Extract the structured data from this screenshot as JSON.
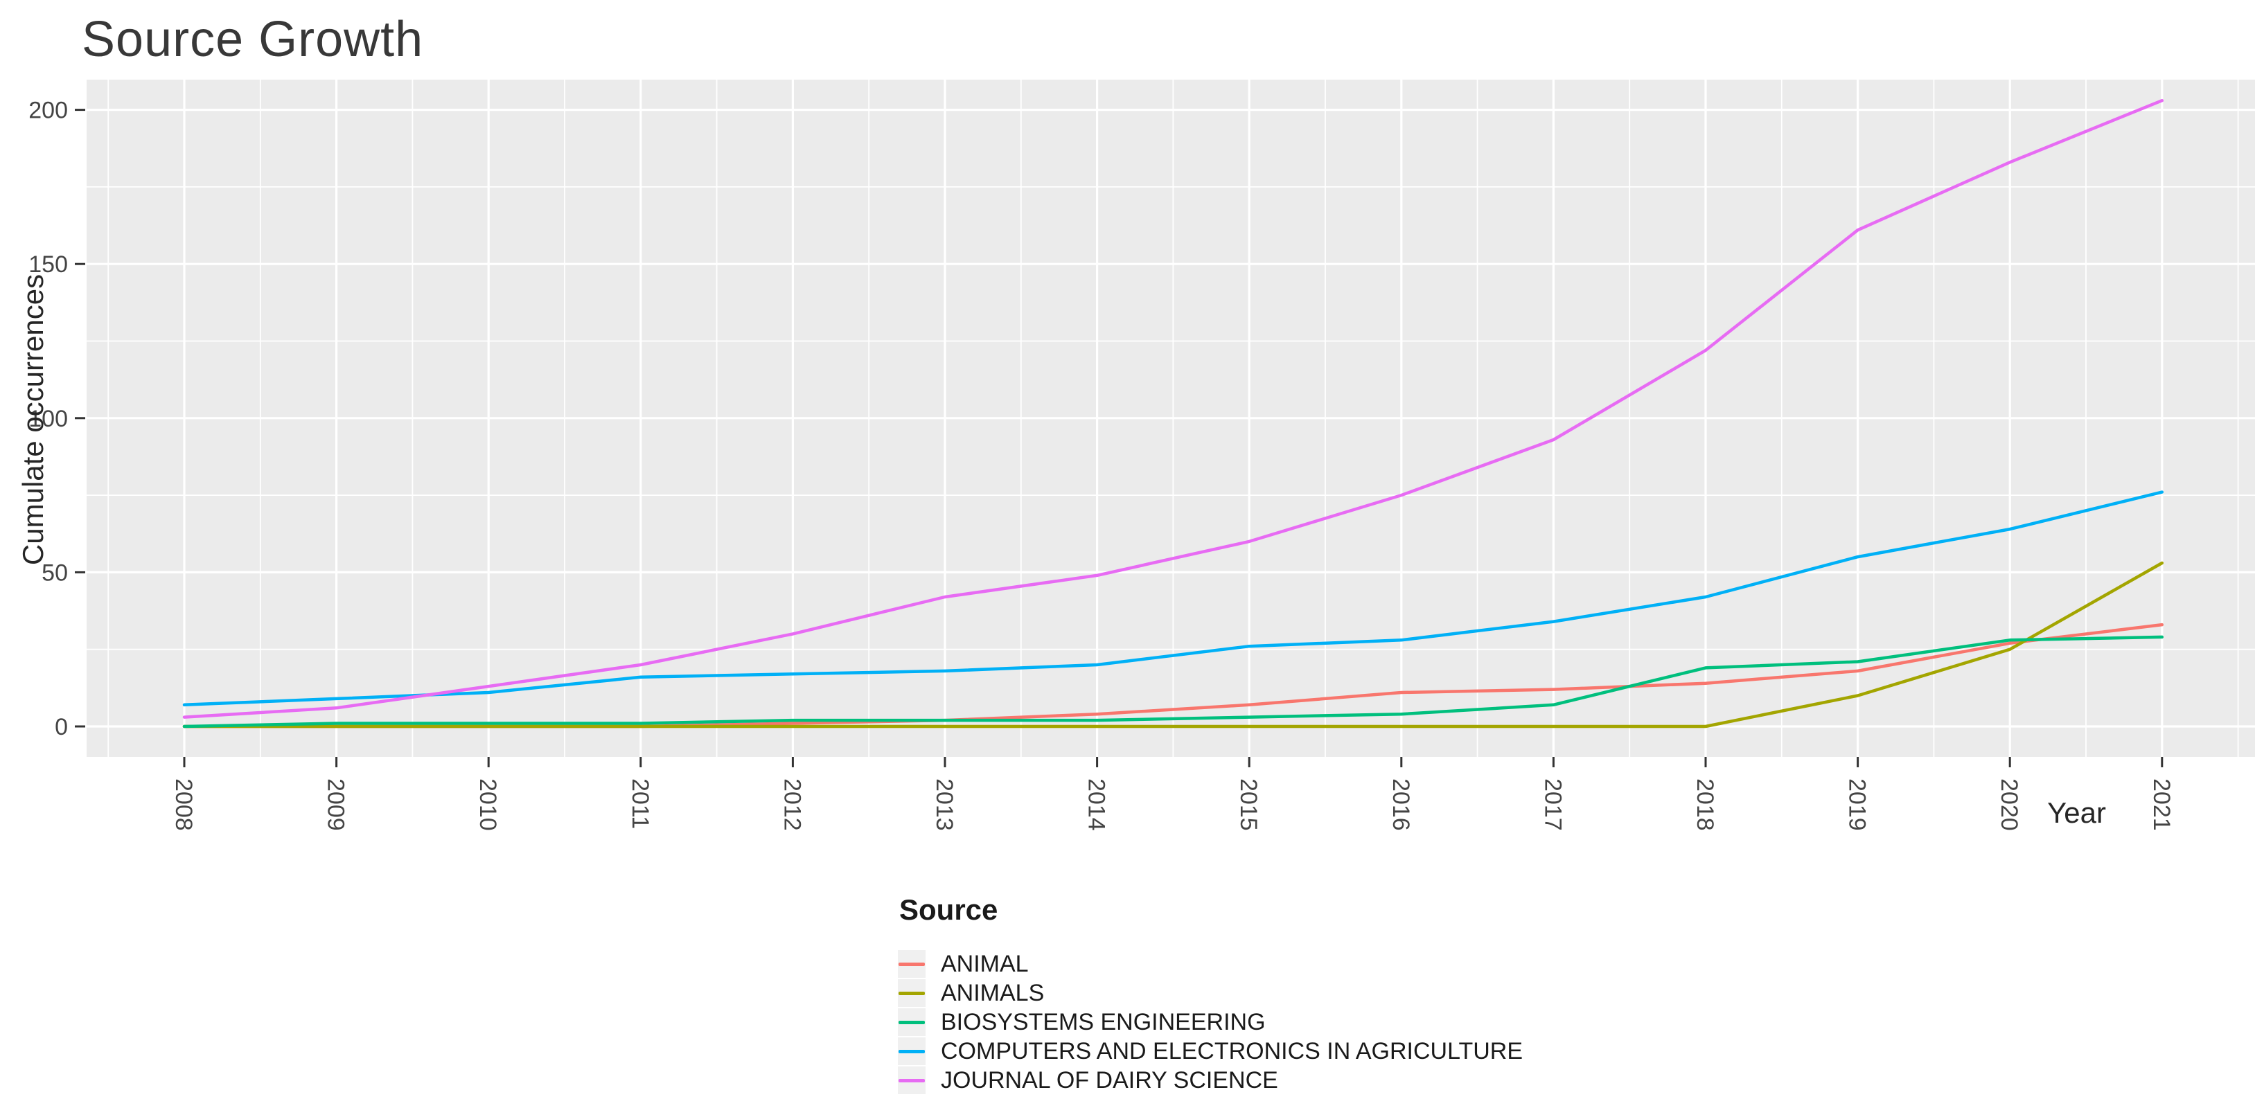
{
  "chart_data": {
    "type": "line",
    "title": "Source Growth",
    "xlabel": "Year",
    "ylabel": "Cumulate occurrences",
    "legend_title": "Source",
    "legend_position": "bottom",
    "grid": true,
    "panel_color": "#EBEBEB",
    "gridline_color": "#FFFFFF",
    "tick_label_color": "#444444",
    "x": [
      2008,
      2009,
      2010,
      2011,
      2012,
      2013,
      2014,
      2015,
      2016,
      2017,
      2018,
      2019,
      2020,
      2021
    ],
    "x_tick_labels": [
      "2008",
      "2009",
      "2010",
      "2011",
      "2012",
      "2013",
      "2014",
      "2015",
      "2016",
      "2017",
      "2018",
      "2019",
      "2020",
      "2021"
    ],
    "y_ticks": [
      0,
      50,
      100,
      150,
      200
    ],
    "y_tick_labels": [
      "0",
      "50",
      "100",
      "150",
      "200"
    ],
    "y_minor_ticks": [
      25,
      75,
      125,
      175
    ],
    "ylim": [
      -10,
      210
    ],
    "series": [
      {
        "name": "ANIMAL",
        "color": "#F8766D",
        "values": [
          0,
          0,
          0,
          0,
          1,
          2,
          4,
          7,
          11,
          12,
          14,
          18,
          27,
          33
        ]
      },
      {
        "name": "ANIMALS",
        "color": "#A3A500",
        "values": [
          0,
          0,
          0,
          0,
          0,
          0,
          0,
          0,
          0,
          0,
          0,
          10,
          25,
          53
        ]
      },
      {
        "name": "BIOSYSTEMS ENGINEERING",
        "color": "#00BF7D",
        "values": [
          0,
          1,
          1,
          1,
          2,
          2,
          2,
          3,
          4,
          7,
          19,
          21,
          28,
          29
        ]
      },
      {
        "name": "COMPUTERS AND ELECTRONICS IN AGRICULTURE",
        "color": "#00B0F6",
        "values": [
          7,
          9,
          11,
          16,
          17,
          18,
          20,
          26,
          28,
          34,
          42,
          55,
          64,
          76
        ]
      },
      {
        "name": "JOURNAL OF DAIRY SCIENCE",
        "color": "#E76BF3",
        "values": [
          3,
          6,
          13,
          20,
          30,
          42,
          49,
          60,
          75,
          93,
          122,
          161,
          183,
          203
        ]
      }
    ]
  }
}
